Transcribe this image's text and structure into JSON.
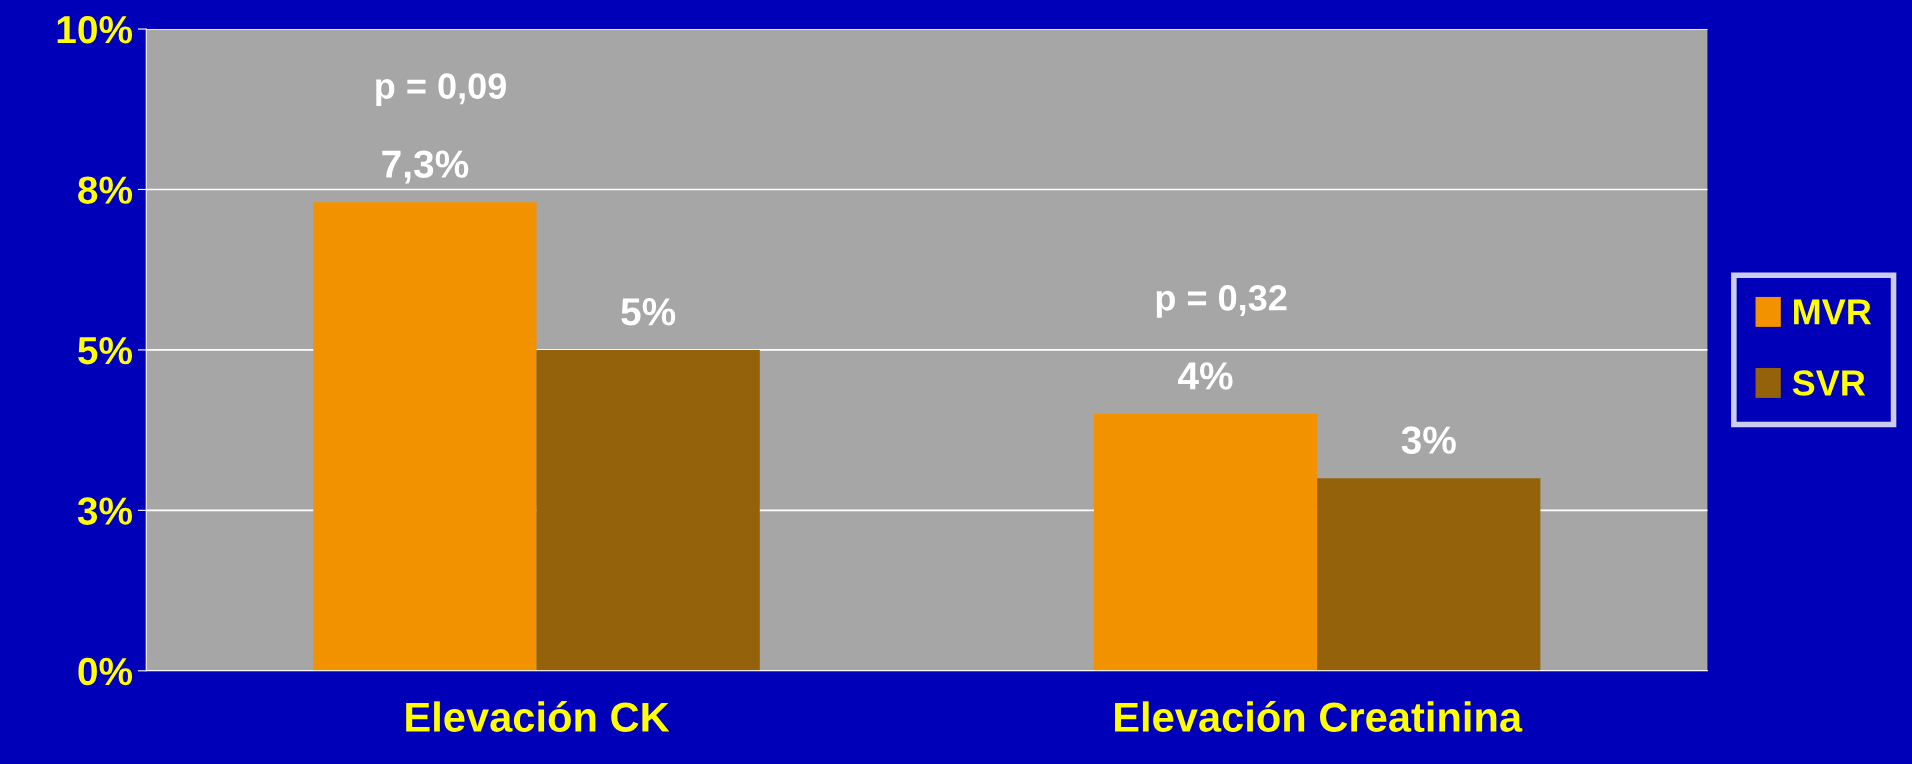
{
  "chart_data": {
    "type": "bar",
    "categories": [
      "Elevación CK",
      "Elevación Creatinina"
    ],
    "series": [
      {
        "name": "MVR",
        "color": "#f39200",
        "values": [
          7.3,
          4
        ],
        "value_labels": [
          "7,3%",
          "4%"
        ]
      },
      {
        "name": "SVR",
        "color": "#94620a",
        "values": [
          5,
          3
        ],
        "value_labels": [
          "5%",
          "3%"
        ]
      }
    ],
    "ylim": [
      0,
      10
    ],
    "yticks": [
      {
        "value": 0,
        "label": "0%"
      },
      {
        "value": 2.5,
        "label": "3%"
      },
      {
        "value": 5,
        "label": "5%"
      },
      {
        "value": 7.5,
        "label": "8%"
      },
      {
        "value": 10,
        "label": "10%"
      }
    ],
    "grid": "y",
    "legend": "right",
    "annotations": [
      "p = 0,09",
      "p = 0,32"
    ]
  }
}
